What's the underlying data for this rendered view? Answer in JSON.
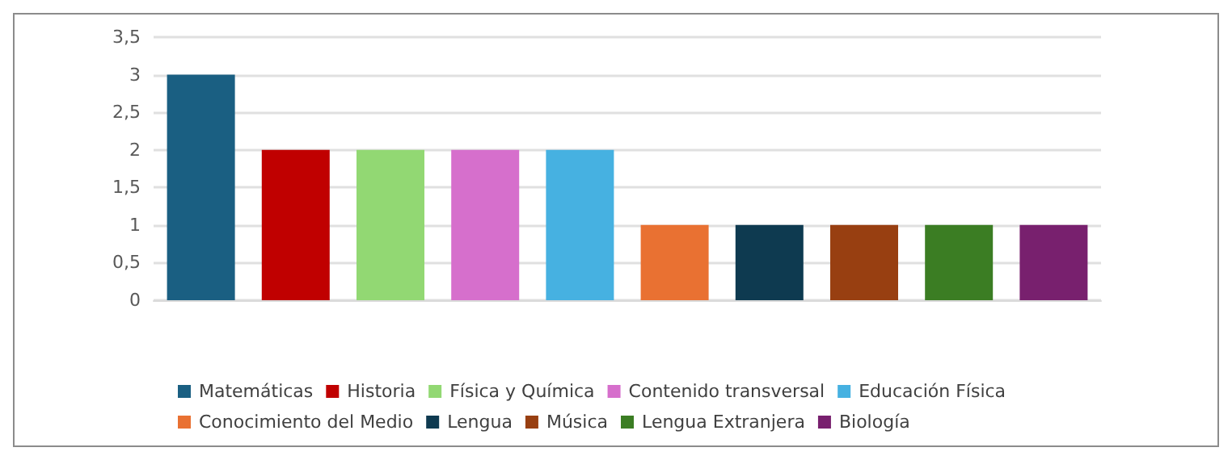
{
  "chart_data": {
    "type": "bar",
    "categories": [
      null,
      null,
      null,
      null,
      null,
      null,
      null,
      null,
      null,
      null
    ],
    "series": [
      {
        "name": "Matemáticas",
        "color": "#1a5f82",
        "values": [
          3,
          null,
          null,
          null,
          null,
          null,
          null,
          null,
          null,
          null
        ]
      },
      {
        "name": "Historia",
        "color": "#c00000",
        "values": [
          null,
          2,
          null,
          null,
          null,
          null,
          null,
          null,
          null,
          null
        ]
      },
      {
        "name": "Física y Química",
        "color": "#92d873",
        "values": [
          null,
          null,
          2,
          null,
          null,
          null,
          null,
          null,
          null,
          null
        ]
      },
      {
        "name": "Contenido transversal",
        "color": "#d66fcc",
        "values": [
          null,
          null,
          null,
          2,
          null,
          null,
          null,
          null,
          null,
          null
        ]
      },
      {
        "name": "Educación Física",
        "color": "#46b1e1",
        "values": [
          null,
          null,
          null,
          null,
          2,
          null,
          null,
          null,
          null,
          null
        ]
      },
      {
        "name": "Conocimiento del Medio",
        "color": "#e97132",
        "values": [
          null,
          null,
          null,
          null,
          null,
          1,
          null,
          null,
          null,
          null
        ]
      },
      {
        "name": "Lengua",
        "color": "#0e3a50",
        "values": [
          null,
          null,
          null,
          null,
          null,
          null,
          1,
          null,
          null,
          null
        ]
      },
      {
        "name": "Música",
        "color": "#983f11",
        "values": [
          null,
          null,
          null,
          null,
          null,
          null,
          null,
          1,
          null,
          null
        ]
      },
      {
        "name": "Lengua Extranjera",
        "color": "#3b7d23",
        "values": [
          null,
          null,
          null,
          null,
          null,
          null,
          null,
          null,
          1,
          null
        ]
      },
      {
        "name": "Biología",
        "color": "#78206e",
        "values": [
          null,
          null,
          null,
          null,
          null,
          null,
          null,
          null,
          null,
          1
        ]
      }
    ],
    "ylim": [
      0,
      3.5
    ],
    "yticks": [
      0,
      {
        "value": 0.5,
        "label": "0,5"
      },
      1,
      {
        "value": 1.5,
        "label": "1,5"
      },
      2,
      {
        "value": 2.5,
        "label": "2,5"
      },
      3,
      {
        "value": 3.5,
        "label": "3,5"
      }
    ],
    "grid": "y",
    "legend": "bottom"
  }
}
